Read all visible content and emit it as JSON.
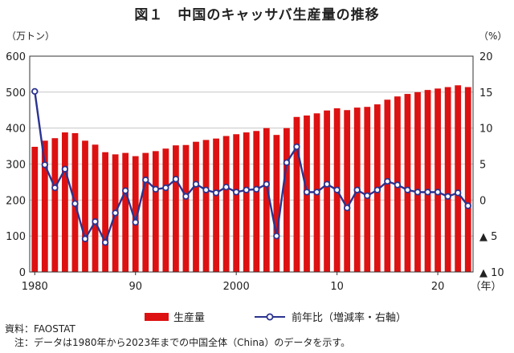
{
  "header": {
    "title": "図１　中国のキャッサバ生産量の推移",
    "left_unit": "（万トン）",
    "right_unit": "（%）"
  },
  "chart_data": {
    "type": "bar+line",
    "title": "図１　中国のキャッサバ生産量の推移",
    "left_axis": {
      "label": "（万トン）",
      "range": [
        0,
        600
      ],
      "ticks": [
        0,
        100,
        200,
        300,
        400,
        500,
        600
      ]
    },
    "right_axis": {
      "label": "（%）",
      "range": [
        -10,
        20
      ],
      "ticks": [
        {
          "value": 20,
          "label": "20"
        },
        {
          "value": 15,
          "label": "15"
        },
        {
          "value": 10,
          "label": "10"
        },
        {
          "value": 5,
          "label": "5"
        },
        {
          "value": 0,
          "label": "0"
        },
        {
          "value": -5,
          "label": "▲ 5"
        },
        {
          "value": -10,
          "label": "▲ 10"
        }
      ]
    },
    "x_axis": {
      "label": "（年）",
      "ticks": [
        {
          "year": 1980,
          "label": "1980"
        },
        {
          "year": 1990,
          "label": "90"
        },
        {
          "year": 2000,
          "label": "2000"
        },
        {
          "year": 2010,
          "label": "10"
        },
        {
          "year": 2020,
          "label": "20"
        }
      ]
    },
    "years": [
      1980,
      1981,
      1982,
      1983,
      1984,
      1985,
      1986,
      1987,
      1988,
      1989,
      1990,
      1991,
      1992,
      1993,
      1994,
      1995,
      1996,
      1997,
      1998,
      1999,
      2000,
      2001,
      2002,
      2003,
      2004,
      2005,
      2006,
      2007,
      2008,
      2009,
      2010,
      2011,
      2012,
      2013,
      2014,
      2015,
      2016,
      2017,
      2018,
      2019,
      2020,
      2021,
      2022,
      2023
    ],
    "series": [
      {
        "name": "生産量",
        "axis": "left",
        "kind": "bar",
        "color": "#dd1111",
        "values": [
          348,
          365,
          372,
          388,
          386,
          365,
          354,
          333,
          327,
          331,
          322,
          331,
          336,
          343,
          352,
          353,
          362,
          367,
          371,
          378,
          383,
          388,
          392,
          400,
          381,
          400,
          431,
          435,
          441,
          449,
          455,
          450,
          457,
          459,
          466,
          479,
          488,
          495,
          500,
          506,
          510,
          514,
          519,
          514
        ]
      },
      {
        "name": "前年比（増減率・右軸）",
        "axis": "right",
        "kind": "line",
        "color": "#2b3390",
        "values": [
          15.1,
          4.9,
          1.7,
          4.3,
          -0.5,
          -5.4,
          -3.0,
          -5.9,
          -1.8,
          1.3,
          -3.1,
          2.8,
          1.5,
          1.7,
          2.9,
          0.5,
          2.2,
          1.4,
          1.0,
          1.8,
          1.1,
          1.4,
          1.5,
          2.2,
          -5.0,
          5.2,
          7.4,
          1.1,
          1.1,
          2.2,
          1.4,
          -1.1,
          1.4,
          0.6,
          1.4,
          2.6,
          2.1,
          1.4,
          1.1,
          1.1,
          1.1,
          0.5,
          1.0,
          -0.8
        ]
      }
    ]
  },
  "legend": {
    "bar_label": "生産量",
    "line_label": "前年比（増減率・右軸）"
  },
  "notes": {
    "source": "資料：FAOSTAT",
    "note": "　注：データは1980年から2023年までの中国全体（China）のデータを示す。"
  }
}
